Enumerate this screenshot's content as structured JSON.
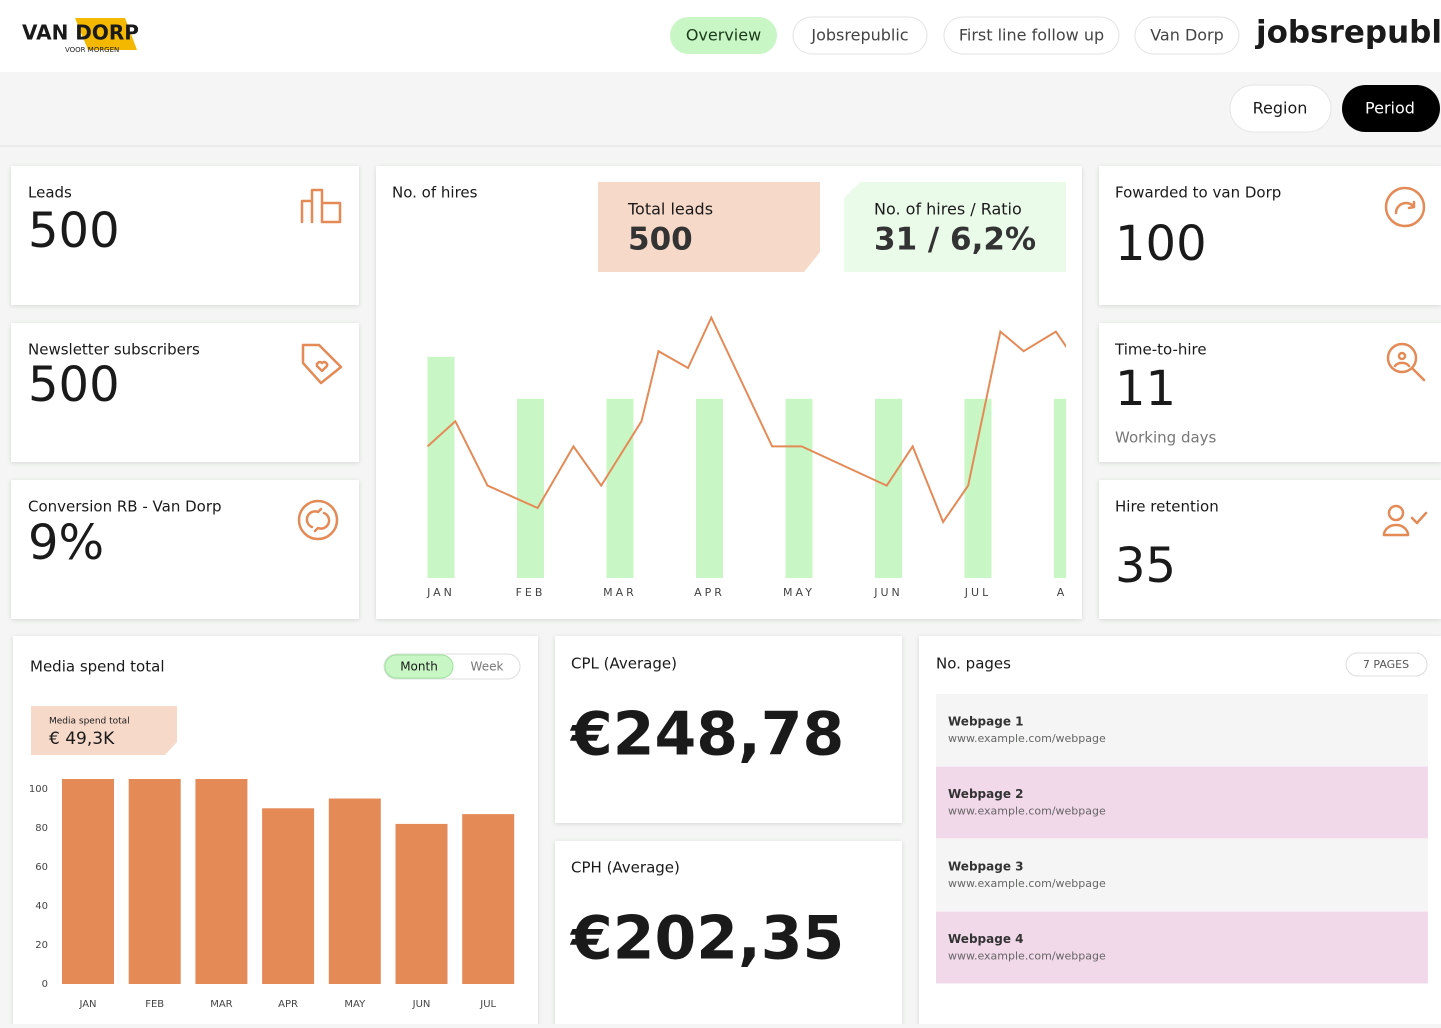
{
  "header": {
    "logo": "VAN DORP",
    "logo_tagline": "VOOR MORGEN",
    "nav": [
      "Overview",
      "Jobsrepublic",
      "First line follow up",
      "Van Dorp"
    ],
    "brand": "jobsrepublic"
  },
  "filters": [
    "Region",
    "Period"
  ],
  "kpis": [
    {
      "label": "Leads",
      "value": "500"
    },
    {
      "label": "Newsletter subscribers",
      "value": "500"
    },
    {
      "label": "Conversion RB - Van Dorp",
      "value": "9%"
    },
    {
      "label": "Fowarded to van Dorp",
      "value": "100"
    },
    {
      "label": "Time-to-hire",
      "value": "11",
      "note": "Working days"
    },
    {
      "label": "Hire retention",
      "value": "35"
    }
  ],
  "averages": [
    {
      "label": "CPL (Average)",
      "value": "€248,78"
    },
    {
      "label": "CPH (Average)",
      "value": "€202,35"
    }
  ],
  "chart_data": [
    {
      "type": "bar",
      "title": "No. of hires",
      "callouts": [
        {
          "label": "Total leads",
          "value": "500"
        },
        {
          "label": "No. of hires / Ratio",
          "value": "31 / 6,2%"
        }
      ],
      "categories": [
        "JAN",
        "FEB",
        "MAR",
        "APR",
        "MAY",
        "JUN",
        "JUL",
        "AU"
      ],
      "values": [
        79,
        64,
        64,
        64,
        64,
        64,
        64,
        64
      ],
      "color": "#c8f7c5",
      "ylim": [
        0,
        100
      ],
      "line": {
        "color": "#e48a57",
        "x": [
          -0.15,
          0.16,
          0.52,
          1.08,
          1.48,
          1.79,
          2.24,
          2.43,
          2.76,
          3.02,
          3.36,
          3.7,
          4.03,
          4.98,
          5.27,
          5.61,
          5.89,
          6.25,
          6.51,
          6.87,
          7.02
        ],
        "values": [
          47,
          56,
          33,
          25,
          47,
          33,
          56,
          81,
          75,
          93,
          70,
          47,
          47,
          33,
          47,
          20,
          33,
          88,
          81,
          88,
          81
        ]
      }
    },
    {
      "type": "bar",
      "title": "Media spend total",
      "toggle": [
        "Month",
        "Week"
      ],
      "callout": {
        "label": "Media spend total",
        "value": "€ 49,3K"
      },
      "categories": [
        "JAN",
        "FEB",
        "MAR",
        "APR",
        "MAY",
        "JUN",
        "JUL"
      ],
      "values": [
        105,
        105,
        105,
        90,
        95,
        82,
        87
      ],
      "color": "#e48a57",
      "ylim": [
        0,
        105
      ],
      "yticks": [
        0,
        20,
        40,
        60,
        80,
        100
      ]
    }
  ],
  "pages": {
    "title": "No. pages",
    "badge": "7 PAGES",
    "items": [
      {
        "name": "Webpage 1",
        "url": "www.example.com/webpage"
      },
      {
        "name": "Webpage 2",
        "url": "www.example.com/webpage"
      },
      {
        "name": "Webpage 3",
        "url": "www.example.com/webpage"
      },
      {
        "name": "Webpage 4",
        "url": "www.example.com/webpage"
      }
    ]
  }
}
